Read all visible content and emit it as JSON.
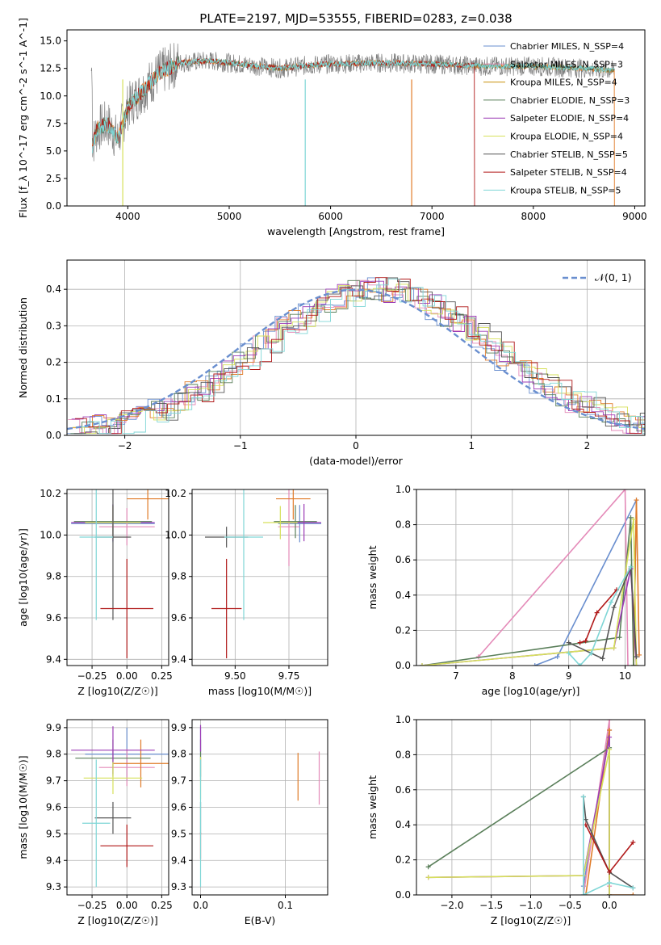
{
  "chart_data": [
    {
      "type": "line",
      "title": "PLATE=2197, MJD=53555, FIBERID=0283, z=0.038",
      "xlabel": "wavelength [Angstrom, rest frame]",
      "ylabel": "Flux [f_λ 10^-17 erg cm^-2 s^-1 A^-1]",
      "xlim": [
        3400,
        9100
      ],
      "ylim": [
        0,
        16
      ],
      "xticks": [
        "4000",
        "5000",
        "6000",
        "7000",
        "8000",
        "9000"
      ],
      "yticks": [
        "0.0",
        "2.5",
        "5.0",
        "7.5",
        "10.0",
        "12.5",
        "15.0"
      ],
      "legend": [
        {
          "label": "Chabrier MILES, N_SSP=4",
          "color": "#6a8fcf"
        },
        {
          "label": "Salpeter MILES, N_SSP=3",
          "color": "#e48ab8"
        },
        {
          "label": "Kroupa MILES, N_SSP=4",
          "color": "#c8900a"
        },
        {
          "label": "Chabrier ELODIE, N_SSP=3",
          "color": "#5a7f5a"
        },
        {
          "label": "Salpeter ELODIE, N_SSP=4",
          "color": "#9b3bb5"
        },
        {
          "label": "Kroupa ELODIE, N_SSP=4",
          "color": "#d6e05a"
        },
        {
          "label": "Chabrier STELIB, N_SSP=5",
          "color": "#555555"
        },
        {
          "label": "Salpeter STELIB, N_SSP=4",
          "color": "#b01818"
        },
        {
          "label": "Kroupa STELIB, N_SSP=5",
          "color": "#7fd6d6"
        }
      ],
      "spectrum_anchors": {
        "x": [
          3650,
          3700,
          3800,
          3900,
          4000,
          4100,
          4200,
          4300,
          4500,
          4800,
          5000,
          5200,
          5500,
          5800,
          6000,
          6500,
          7000,
          7500,
          8000,
          8500,
          8800
        ],
        "y": [
          5.5,
          7.0,
          7.5,
          6.0,
          9.0,
          10.0,
          11.0,
          12.0,
          13.0,
          13.2,
          13.0,
          12.8,
          12.5,
          12.8,
          12.9,
          13.0,
          12.9,
          12.7,
          12.7,
          12.5,
          12.3
        ]
      }
    },
    {
      "type": "bar",
      "xlabel": "(data-model)/error",
      "ylabel": "Normed distribution",
      "xlim": [
        -2.5,
        2.5
      ],
      "ylim": [
        0,
        0.48
      ],
      "xticks": [
        "−2",
        "−1",
        "0",
        "1",
        "2"
      ],
      "yticks": [
        "0.0",
        "0.1",
        "0.2",
        "0.3",
        "0.4"
      ],
      "legend": [
        {
          "label": "𝒩(0, 1)",
          "color": "#6a8fcf"
        }
      ],
      "bin_width": 0.1,
      "series": [
        {
          "name": "Chabrier MILES, N_SSP=4",
          "offset": 0.0
        },
        {
          "name": "Salpeter MILES, N_SSP=3",
          "offset": 0.01
        },
        {
          "name": "Kroupa MILES, N_SSP=4",
          "offset": 0.02
        },
        {
          "name": "Chabrier ELODIE, N_SSP=3",
          "offset": 0.03
        },
        {
          "name": "Salpeter ELODIE, N_SSP=4",
          "offset": 0.04
        },
        {
          "name": "Kroupa ELODIE, N_SSP=4",
          "offset": 0.05
        },
        {
          "name": "Chabrier STELIB, N_SSP=5",
          "offset": 0.06
        },
        {
          "name": "Salpeter STELIB, N_SSP=4",
          "offset": 0.07
        },
        {
          "name": "Kroupa STELIB, N_SSP=5",
          "offset": 0.08
        }
      ]
    },
    {
      "type": "scatter",
      "xlabel": "Z [log10(Z/Z☉)]",
      "ylabel": "age  [log10(age/yr)]",
      "xlim": [
        -0.43,
        0.3
      ],
      "ylim": [
        9.37,
        10.22
      ],
      "xticks": [
        "−0.25",
        "0.00",
        "0.25"
      ],
      "yticks": [
        "9.4",
        "9.6",
        "9.8",
        "10.0",
        "10.2"
      ],
      "points": [
        {
          "x": -0.1,
          "y": 10.055,
          "xerr": 0.3,
          "yerr": 0.09,
          "color": "#6a8fcf"
        },
        {
          "x": 0.0,
          "y": 10.04,
          "xerr": 0.2,
          "yerr": 0.09,
          "color": "#e48ab8"
        },
        {
          "x": 0.15,
          "y": 10.175,
          "xerr": 0.15,
          "yerr": 0.1,
          "color": "#e07b28"
        },
        {
          "x": -0.1,
          "y": 10.065,
          "xerr": 0.28,
          "yerr": 0.08,
          "color": "#5a7f5a"
        },
        {
          "x": -0.1,
          "y": 10.06,
          "xerr": 0.3,
          "yerr": 0.09,
          "color": "#9b3bb5"
        },
        {
          "x": -0.1,
          "y": 10.06,
          "xerr": 0.2,
          "yerr": 0.08,
          "color": "#d6e05a"
        },
        {
          "x": -0.1,
          "y": 9.99,
          "xerr": 0.13,
          "yerr": 0.4,
          "color": "#555555"
        },
        {
          "x": 0.0,
          "y": 9.645,
          "xerr": 0.19,
          "yerr": 0.24,
          "color": "#b01818"
        },
        {
          "x": -0.22,
          "y": 9.99,
          "xerr": 0.12,
          "yerr": 0.4,
          "color": "#7fd6d6"
        }
      ]
    },
    {
      "type": "scatter",
      "xlabel": "mass [log10(M/M☉)]",
      "ylabel": "",
      "xlim": [
        9.3,
        9.93
      ],
      "ylim": [
        9.37,
        10.22
      ],
      "xticks": [
        "9.50",
        "9.75"
      ],
      "yticks": [
        "9.4",
        "9.6",
        "9.8",
        "10.0",
        "10.2"
      ],
      "points": [
        {
          "x": 9.8,
          "y": 10.055,
          "xerr": 0.1,
          "yerr": 0.09,
          "color": "#6a8fcf"
        },
        {
          "x": 9.75,
          "y": 10.04,
          "xerr": 0.05,
          "yerr": 0.19,
          "color": "#e48ab8"
        },
        {
          "x": 9.77,
          "y": 10.175,
          "xerr": 0.08,
          "yerr": 0.1,
          "color": "#e07b28"
        },
        {
          "x": 9.78,
          "y": 10.065,
          "xerr": 0.1,
          "yerr": 0.08,
          "color": "#5a7f5a"
        },
        {
          "x": 9.82,
          "y": 10.06,
          "xerr": 0.08,
          "yerr": 0.09,
          "color": "#9b3bb5"
        },
        {
          "x": 9.71,
          "y": 10.06,
          "xerr": 0.08,
          "yerr": 0.08,
          "color": "#d6e05a"
        },
        {
          "x": 9.46,
          "y": 9.99,
          "xerr": 0.1,
          "yerr": 0.05,
          "color": "#555555"
        },
        {
          "x": 9.46,
          "y": 9.645,
          "xerr": 0.07,
          "yerr": 0.24,
          "color": "#b01818"
        },
        {
          "x": 9.54,
          "y": 9.99,
          "xerr": 0.09,
          "yerr": 0.4,
          "color": "#7fd6d6"
        }
      ]
    },
    {
      "type": "line",
      "xlabel": "age  [log10(age/yr)]",
      "ylabel": "mass weight",
      "xlim": [
        6.3,
        10.35
      ],
      "ylim": [
        0,
        1
      ],
      "xticks": [
        "7",
        "8",
        "9",
        "10"
      ],
      "yticks": [
        "0.0",
        "0.2",
        "0.4",
        "0.6",
        "0.8",
        "1.0"
      ],
      "series": [
        {
          "name": "Chabrier MILES, N_SSP=4",
          "color": "#6a8fcf",
          "x": [
            8.4,
            8.8,
            10.2,
            10.15
          ],
          "y": [
            0.0,
            0.05,
            0.94,
            0.0
          ]
        },
        {
          "name": "Salpeter MILES, N_SSP=3",
          "color": "#e48ab8",
          "x": [
            7.4,
            10.0,
            10.05
          ],
          "y": [
            0.05,
            1.0,
            0.0
          ]
        },
        {
          "name": "Kroupa MILES, N_SSP=4",
          "color": "#e07b28",
          "x": [
            10.15,
            10.2,
            10.25
          ],
          "y": [
            0.0,
            0.94,
            0.06
          ]
        },
        {
          "name": "Chabrier ELODIE, N_SSP=3",
          "color": "#5a7f5a",
          "x": [
            6.4,
            9.9,
            10.1,
            10.15
          ],
          "y": [
            0.0,
            0.16,
            0.84,
            0.0
          ]
        },
        {
          "name": "Salpeter ELODIE, N_SSP=4",
          "color": "#9b3bb5",
          "x": [
            6.4,
            9.8,
            10.1,
            10.2
          ],
          "y": [
            0.0,
            0.1,
            0.55,
            0.0
          ]
        },
        {
          "name": "Kroupa ELODIE, N_SSP=4",
          "color": "#d6e05a",
          "x": [
            6.4,
            9.8,
            10.15,
            10.2
          ],
          "y": [
            0.0,
            0.1,
            0.83,
            0.0
          ]
        },
        {
          "name": "Chabrier STELIB, N_SSP=5",
          "color": "#555555",
          "x": [
            9.0,
            9.6,
            9.8,
            10.1,
            10.2
          ],
          "y": [
            0.13,
            0.04,
            0.33,
            0.56,
            0.05
          ]
        },
        {
          "name": "Salpeter STELIB, N_SSP=4",
          "color": "#b01818",
          "x": [
            9.2,
            9.3,
            9.5,
            9.85
          ],
          "y": [
            0.13,
            0.14,
            0.3,
            0.43
          ]
        },
        {
          "name": "Kroupa STELIB, N_SSP=5",
          "color": "#7fd6d6",
          "x": [
            9.0,
            9.2,
            9.4,
            9.75,
            10.1
          ],
          "y": [
            0.07,
            0.0,
            0.07,
            0.36,
            0.56
          ]
        }
      ]
    },
    {
      "type": "scatter",
      "xlabel": "Z [log10(Z/Z☉)]",
      "ylabel": "mass [log10(M/M☉)]",
      "xlim": [
        -0.43,
        0.3
      ],
      "ylim": [
        9.27,
        9.93
      ],
      "xticks": [
        "−0.25",
        "0.00",
        "0.25"
      ],
      "yticks": [
        "9.3",
        "9.4",
        "9.5",
        "9.6",
        "9.7",
        "9.8",
        "9.9"
      ],
      "points": [
        {
          "x": 0.0,
          "y": 9.8,
          "xerr": 0.3,
          "yerr": 0.1,
          "color": "#6a8fcf"
        },
        {
          "x": 0.0,
          "y": 9.75,
          "xerr": 0.2,
          "yerr": 0.07,
          "color": "#e48ab8"
        },
        {
          "x": 0.1,
          "y": 9.765,
          "xerr": 0.2,
          "yerr": 0.09,
          "color": "#e07b28"
        },
        {
          "x": -0.1,
          "y": 9.785,
          "xerr": 0.27,
          "yerr": 0.07,
          "color": "#5a7f5a"
        },
        {
          "x": -0.1,
          "y": 9.815,
          "xerr": 0.3,
          "yerr": 0.09,
          "color": "#9b3bb5"
        },
        {
          "x": -0.1,
          "y": 9.71,
          "xerr": 0.21,
          "yerr": 0.06,
          "color": "#d6e05a"
        },
        {
          "x": -0.1,
          "y": 9.56,
          "xerr": 0.13,
          "yerr": 0.06,
          "color": "#555555"
        },
        {
          "x": 0.0,
          "y": 9.455,
          "xerr": 0.19,
          "yerr": 0.08,
          "color": "#b01818"
        },
        {
          "x": -0.22,
          "y": 9.54,
          "xerr": 0.1,
          "yerr": 0.24,
          "color": "#7fd6d6"
        }
      ]
    },
    {
      "type": "scatter",
      "xlabel": "E(B-V)",
      "ylabel": "",
      "xlim": [
        -0.01,
        0.15
      ],
      "ylim": [
        9.27,
        9.93
      ],
      "xticks": [
        "0.0",
        "0.1"
      ],
      "yticks": [
        "9.3",
        "9.4",
        "9.5",
        "9.6",
        "9.7",
        "9.8",
        "9.9"
      ],
      "points": [
        {
          "x": 0.0,
          "y": 9.8,
          "xerr": 0.0,
          "yerr": 0.1,
          "color": "#6a8fcf"
        },
        {
          "x": 0.14,
          "y": 9.71,
          "xerr": 0.0,
          "yerr": 0.1,
          "color": "#e48ab8"
        },
        {
          "x": 0.115,
          "y": 9.715,
          "xerr": 0.0,
          "yerr": 0.09,
          "color": "#e07b28"
        },
        {
          "x": 0.0,
          "y": 9.785,
          "xerr": 0.0,
          "yerr": 0.07,
          "color": "#5a7f5a"
        },
        {
          "x": 0.0,
          "y": 9.86,
          "xerr": 0.0,
          "yerr": 0.05,
          "color": "#9b3bb5"
        },
        {
          "x": 0.0,
          "y": 9.71,
          "xerr": 0.0,
          "yerr": 0.08,
          "color": "#d6e05a"
        },
        {
          "x": 0.0,
          "y": 9.56,
          "xerr": 0.0,
          "yerr": 0.06,
          "color": "#555555"
        },
        {
          "x": 0.0,
          "y": 9.455,
          "xerr": 0.0,
          "yerr": 0.05,
          "color": "#b01818"
        },
        {
          "x": 0.0,
          "y": 9.54,
          "xerr": 0.0,
          "yerr": 0.24,
          "color": "#7fd6d6"
        }
      ]
    },
    {
      "type": "line",
      "xlabel": "Z [log10(Z/Z☉)]",
      "ylabel": "mass weight",
      "xlim": [
        -2.45,
        0.45
      ],
      "ylim": [
        0,
        1
      ],
      "xticks": [
        "−2.0",
        "−1.5",
        "−1.0",
        "−0.5",
        "0.0"
      ],
      "yticks": [
        "0.0",
        "0.2",
        "0.4",
        "0.6",
        "0.8",
        "1.0"
      ],
      "series": [
        {
          "name": "Chabrier MILES, N_SSP=4",
          "color": "#6a8fcf",
          "x": [
            -0.33,
            0.0,
            0.0
          ],
          "y": [
            0.05,
            0.94,
            0.0
          ]
        },
        {
          "name": "Salpeter MILES, N_SSP=3",
          "color": "#e48ab8",
          "x": [
            -0.33,
            0.0,
            0.0
          ],
          "y": [
            0.0,
            1.0,
            0.05
          ]
        },
        {
          "name": "Kroupa MILES, N_SSP=4",
          "color": "#e07b28",
          "x": [
            -0.3,
            0.0,
            0.0,
            0.3
          ],
          "y": [
            0.0,
            0.94,
            0.0,
            0.0
          ]
        },
        {
          "name": "Chabrier ELODIE, N_SSP=3",
          "color": "#5a7f5a",
          "x": [
            -2.3,
            0.0,
            0.0
          ],
          "y": [
            0.16,
            0.84,
            0.0
          ]
        },
        {
          "name": "Salpeter ELODIE, N_SSP=4",
          "color": "#9b3bb5",
          "x": [
            -2.3,
            -0.33,
            0.0,
            0.0
          ],
          "y": [
            0.1,
            0.11,
            0.9,
            0.0
          ]
        },
        {
          "name": "Kroupa ELODIE, N_SSP=4",
          "color": "#d6e05a",
          "x": [
            -2.3,
            -0.33,
            0.0,
            0.0
          ],
          "y": [
            0.1,
            0.11,
            0.83,
            0.0
          ]
        },
        {
          "name": "Chabrier STELIB, N_SSP=5",
          "color": "#555555",
          "x": [
            -0.33,
            -0.3,
            0.0,
            0.3
          ],
          "y": [
            0.56,
            0.43,
            0.13,
            0.04
          ]
        },
        {
          "name": "Salpeter STELIB, N_SSP=4",
          "color": "#b01818",
          "x": [
            -0.3,
            0.0,
            0.3
          ],
          "y": [
            0.4,
            0.13,
            0.3
          ]
        },
        {
          "name": "Kroupa STELIB, N_SSP=5",
          "color": "#7fd6d6",
          "x": [
            -0.33,
            -0.33,
            0.0,
            0.3
          ],
          "y": [
            0.56,
            0.0,
            0.07,
            0.04
          ]
        }
      ]
    }
  ]
}
